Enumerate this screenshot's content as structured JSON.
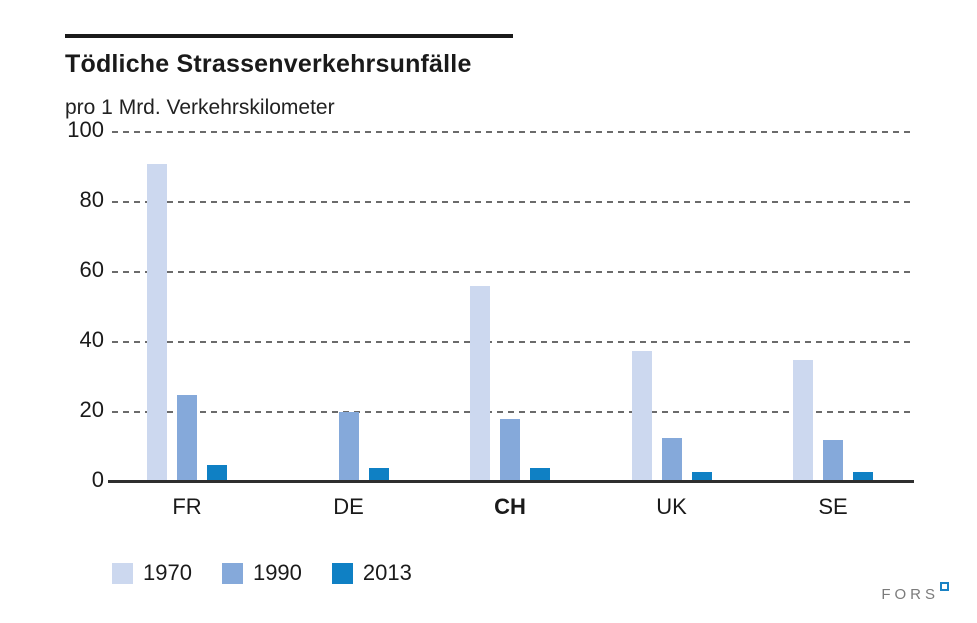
{
  "header": {
    "title": "Tödliche Strassenverkehrsunfälle",
    "subtitle": "pro 1 Mrd. Verkehrskilometer"
  },
  "chart_data": {
    "type": "bar",
    "title": "Tödliche Strassenverkehrsunfälle",
    "subtitle_unit": "pro 1 Mrd. Verkehrskilometer",
    "categories": [
      "FR",
      "DE",
      "CH",
      "UK",
      "SE"
    ],
    "bold_category": "CH",
    "series": [
      {
        "name": "1970",
        "color": "#ccd8ef",
        "values": [
          91,
          null,
          56,
          37.5,
          35
        ]
      },
      {
        "name": "1990",
        "color": "#85a9da",
        "values": [
          25,
          20,
          18,
          12.5,
          12
        ]
      },
      {
        "name": "2013",
        "color": "#0f80c4",
        "values": [
          5,
          4,
          4,
          3,
          3
        ]
      }
    ],
    "ylim": [
      0,
      100
    ],
    "yticks": [
      0,
      20,
      40,
      60,
      80,
      100
    ],
    "grid": "horizontal-dashed",
    "legend_position": "bottom-left",
    "axis_color": "#2f2f2f",
    "grid_color": "#6b6b6b"
  },
  "branding": {
    "logo_text": "FORS",
    "logo_color": "#7b7b7b",
    "logo_mark_color": "#1a82c4"
  }
}
